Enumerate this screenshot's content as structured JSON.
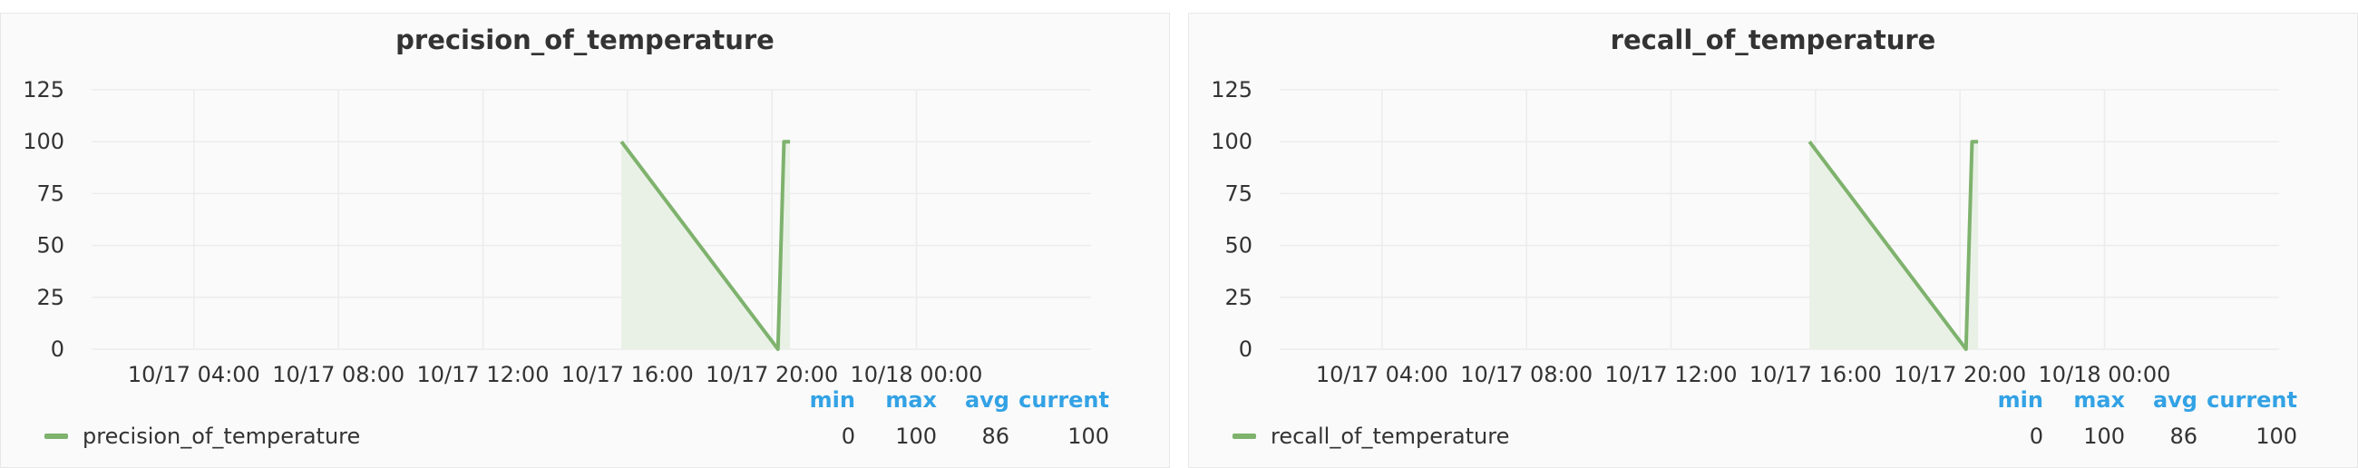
{
  "colors": {
    "series": "#7eb26d",
    "fill": "#e9f1e6",
    "grid": "#ececec",
    "legend_header": "#33a2e5"
  },
  "legend_headers": {
    "min": "min",
    "max": "max",
    "avg": "avg",
    "current": "current"
  },
  "chart_data": [
    {
      "type": "line",
      "title": "precision_of_temperature",
      "yticks": [
        0,
        25,
        50,
        75,
        100,
        125
      ],
      "ylim": [
        0,
        125
      ],
      "xlim": [
        "10/17 01:10",
        "10/18 04:50"
      ],
      "xticks": [
        "10/17 04:00",
        "10/17 08:00",
        "10/17 12:00",
        "10/17 16:00",
        "10/17 20:00",
        "10/18 00:00"
      ],
      "grid": true,
      "legend_position": "bottom",
      "series": [
        {
          "name": "precision_of_temperature",
          "points": [
            [
              "10/17 15:50",
              100
            ],
            [
              "10/17 20:10",
              0
            ],
            [
              "10/17 20:20",
              100
            ],
            [
              "10/17 20:30",
              100
            ]
          ],
          "stats": {
            "min": "0",
            "max": "100",
            "avg": "86",
            "current": "100"
          }
        }
      ]
    },
    {
      "type": "line",
      "title": "recall_of_temperature",
      "yticks": [
        0,
        25,
        50,
        75,
        100,
        125
      ],
      "ylim": [
        0,
        125
      ],
      "xlim": [
        "10/17 01:10",
        "10/18 04:50"
      ],
      "xticks": [
        "10/17 04:00",
        "10/17 08:00",
        "10/17 12:00",
        "10/17 16:00",
        "10/17 20:00",
        "10/18 00:00"
      ],
      "grid": true,
      "legend_position": "bottom",
      "series": [
        {
          "name": "recall_of_temperature",
          "points": [
            [
              "10/17 15:50",
              100
            ],
            [
              "10/17 20:10",
              0
            ],
            [
              "10/17 20:20",
              100
            ],
            [
              "10/17 20:30",
              100
            ]
          ],
          "stats": {
            "min": "0",
            "max": "100",
            "avg": "86",
            "current": "100"
          }
        }
      ]
    }
  ]
}
